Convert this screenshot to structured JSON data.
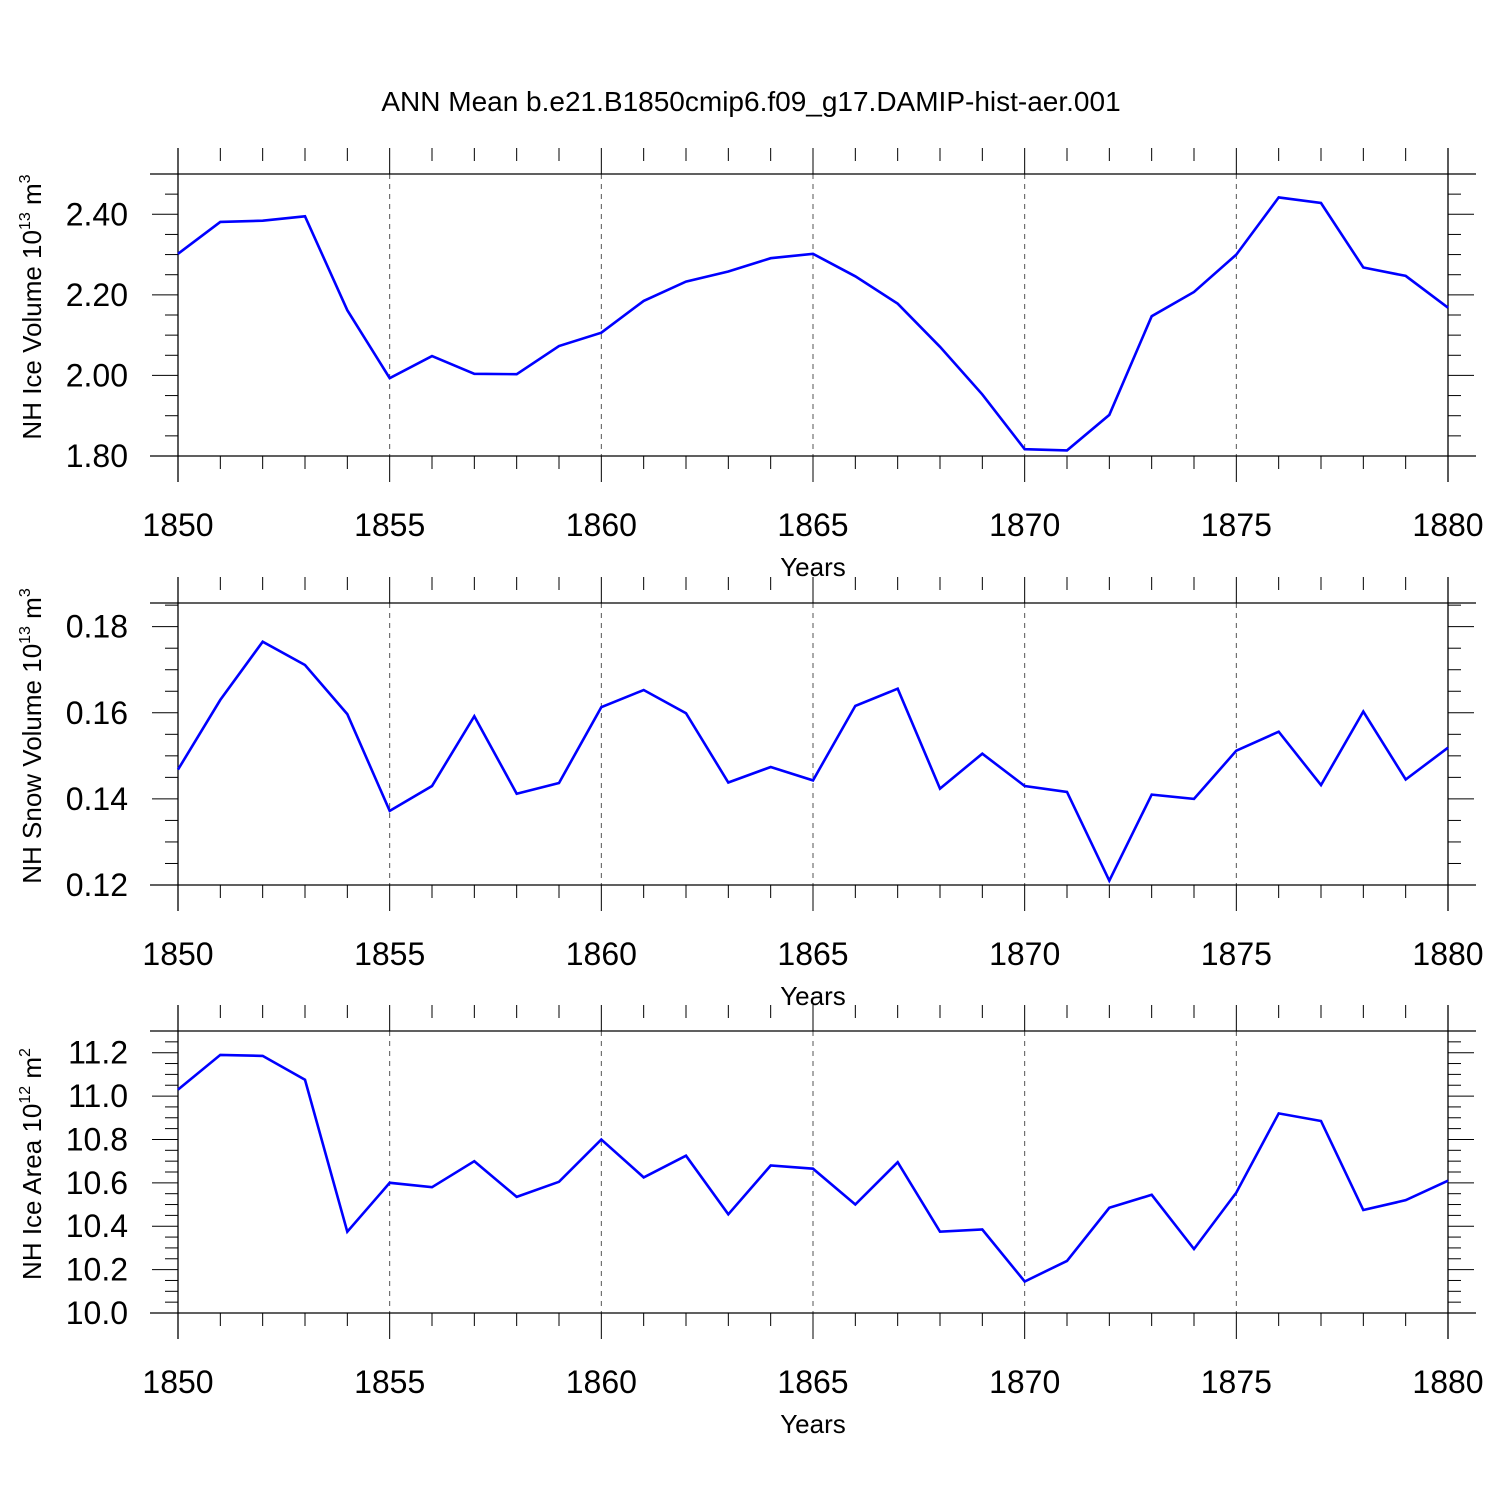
{
  "title": "ANN Mean b.e21.B1850cmip6.f09_g17.DAMIP-hist-aer.001",
  "colors": {
    "series": "#0000ff",
    "axis": "#000000",
    "grid": "#555555"
  },
  "chart_data": [
    {
      "type": "line",
      "ylabel": "NH Ice Volume",
      "ylabel_unit_base": "10",
      "ylabel_unit_exp": "13",
      "ylabel_unit_rest": " m",
      "ylabel_unit_rest_exp": "3",
      "xlabel": "Years",
      "xlim": [
        1850,
        1880
      ],
      "ylim": [
        1.8,
        2.5
      ],
      "x_ticks": [
        1850,
        1855,
        1860,
        1865,
        1870,
        1875,
        1880
      ],
      "x_tick_labels": [
        "1850",
        "1855",
        "1860",
        "1865",
        "1870",
        "1875",
        "1880"
      ],
      "y_ticks": [
        1.8,
        2.0,
        2.2,
        2.4
      ],
      "y_tick_labels": [
        "1.80",
        "2.00",
        "2.20",
        "2.40"
      ],
      "y_minor_step": 0.05,
      "grid": "vertical dashed at major x ticks",
      "x": [
        1850,
        1851,
        1852,
        1853,
        1854,
        1855,
        1856,
        1857,
        1858,
        1859,
        1860,
        1861,
        1862,
        1863,
        1864,
        1865,
        1866,
        1867,
        1868,
        1869,
        1870,
        1871,
        1872,
        1873,
        1874,
        1875,
        1876,
        1877,
        1878,
        1879,
        1880
      ],
      "series": [
        {
          "values": [
            2.302,
            2.381,
            2.384,
            2.395,
            2.162,
            1.993,
            2.048,
            2.004,
            2.003,
            2.073,
            2.106,
            2.185,
            2.233,
            2.258,
            2.291,
            2.302,
            2.246,
            2.178,
            2.071,
            1.953,
            1.817,
            1.814,
            1.902,
            2.147,
            2.207,
            2.3,
            2.442,
            2.428,
            2.268,
            2.247,
            2.168
          ]
        }
      ]
    },
    {
      "type": "line",
      "ylabel": "NH Snow Volume",
      "ylabel_unit_base": "10",
      "ylabel_unit_exp": "13",
      "ylabel_unit_rest": " m",
      "ylabel_unit_rest_exp": "3",
      "xlabel": "Years",
      "xlim": [
        1850,
        1880
      ],
      "ylim": [
        0.12,
        0.1855
      ],
      "x_ticks": [
        1850,
        1855,
        1860,
        1865,
        1870,
        1875,
        1880
      ],
      "x_tick_labels": [
        "1850",
        "1855",
        "1860",
        "1865",
        "1870",
        "1875",
        "1880"
      ],
      "y_ticks": [
        0.12,
        0.14,
        0.16,
        0.18
      ],
      "y_tick_labels": [
        "0.12",
        "0.14",
        "0.16",
        "0.18"
      ],
      "y_minor_step": 0.005,
      "grid": "vertical dashed at major x ticks",
      "x": [
        1850,
        1851,
        1852,
        1853,
        1854,
        1855,
        1856,
        1857,
        1858,
        1859,
        1860,
        1861,
        1862,
        1863,
        1864,
        1865,
        1866,
        1867,
        1868,
        1869,
        1870,
        1871,
        1872,
        1873,
        1874,
        1875,
        1876,
        1877,
        1878,
        1879,
        1880
      ],
      "series": [
        {
          "values": [
            0.1468,
            0.163,
            0.1765,
            0.1711,
            0.1597,
            0.1372,
            0.143,
            0.1592,
            0.1412,
            0.1437,
            0.1613,
            0.1653,
            0.1599,
            0.1438,
            0.1474,
            0.1443,
            0.1616,
            0.1656,
            0.1424,
            0.1505,
            0.143,
            0.1416,
            0.121,
            0.141,
            0.14,
            0.1512,
            0.1556,
            0.1432,
            0.1603,
            0.1445,
            0.1519
          ]
        }
      ]
    },
    {
      "type": "line",
      "ylabel": "NH Ice Area",
      "ylabel_unit_base": "10",
      "ylabel_unit_exp": "12",
      "ylabel_unit_rest": " m",
      "ylabel_unit_rest_exp": "2",
      "xlabel": "Years",
      "xlim": [
        1850,
        1880
      ],
      "ylim": [
        10.0,
        11.3
      ],
      "x_ticks": [
        1850,
        1855,
        1860,
        1865,
        1870,
        1875,
        1880
      ],
      "x_tick_labels": [
        "1850",
        "1855",
        "1860",
        "1865",
        "1870",
        "1875",
        "1880"
      ],
      "y_ticks": [
        10.0,
        10.2,
        10.4,
        10.6,
        10.8,
        11.0,
        11.2
      ],
      "y_tick_labels": [
        "10.0",
        "10.2",
        "10.4",
        "10.6",
        "10.8",
        "11.0",
        "11.2"
      ],
      "y_minor_step": 0.05,
      "grid": "vertical dashed at major x ticks",
      "x": [
        1850,
        1851,
        1852,
        1853,
        1854,
        1855,
        1856,
        1857,
        1858,
        1859,
        1860,
        1861,
        1862,
        1863,
        1864,
        1865,
        1866,
        1867,
        1868,
        1869,
        1870,
        1871,
        1872,
        1873,
        1874,
        1875,
        1876,
        1877,
        1878,
        1879,
        1880
      ],
      "series": [
        {
          "values": [
            11.03,
            11.19,
            11.185,
            11.075,
            10.375,
            10.6,
            10.58,
            10.7,
            10.535,
            10.605,
            10.8,
            10.625,
            10.725,
            10.455,
            10.68,
            10.665,
            10.5,
            10.695,
            10.375,
            10.385,
            10.145,
            10.24,
            10.485,
            10.545,
            10.295,
            10.555,
            10.92,
            10.885,
            10.475,
            10.52,
            10.61
          ]
        }
      ]
    }
  ]
}
